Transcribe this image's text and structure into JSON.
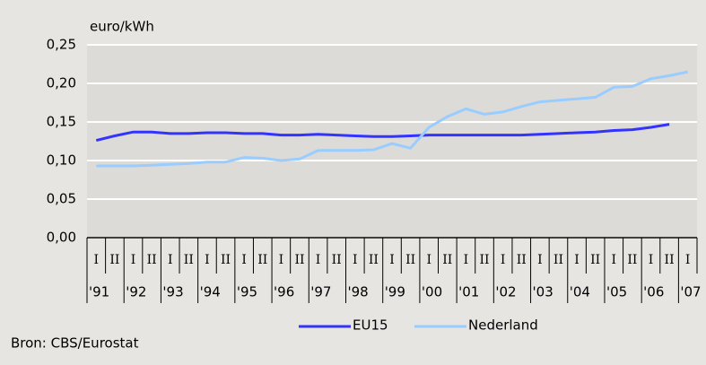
{
  "chart_data": {
    "type": "line",
    "y_unit": "euro/kWh",
    "source": "Bron: CBS/Eurostat",
    "categories": [
      "I",
      "II",
      "I",
      "II",
      "I",
      "II",
      "I",
      "II",
      "I",
      "II",
      "I",
      "II",
      "I",
      "II",
      "I",
      "II",
      "I",
      "II",
      "I",
      "II",
      "I",
      "II",
      "I",
      "II",
      "I",
      "II",
      "I",
      "II",
      "I",
      "II",
      "I",
      "II",
      "I"
    ],
    "year_labels": [
      "'91",
      "'92",
      "'93",
      "'94",
      "'95",
      "'96",
      "'97",
      "'98",
      "'99",
      "'00",
      "'01",
      "'02",
      "'03",
      "'04",
      "'05",
      "'06",
      "'07"
    ],
    "series": [
      {
        "name": "EU15",
        "color": "#3333ff",
        "values": [
          0.126,
          0.132,
          0.137,
          0.137,
          0.135,
          0.135,
          0.136,
          0.136,
          0.135,
          0.135,
          0.133,
          0.133,
          0.134,
          0.133,
          0.132,
          0.131,
          0.131,
          0.132,
          0.133,
          0.133,
          0.133,
          0.133,
          0.133,
          0.133,
          0.134,
          0.135,
          0.136,
          0.137,
          0.139,
          0.14,
          0.143,
          0.147,
          null
        ]
      },
      {
        "name": "Nederland",
        "color": "#99ccff",
        "values": [
          0.093,
          0.093,
          0.093,
          0.094,
          0.095,
          0.096,
          0.098,
          0.098,
          0.104,
          0.103,
          0.1,
          0.102,
          0.113,
          0.113,
          0.113,
          0.114,
          0.122,
          0.116,
          0.143,
          0.157,
          0.167,
          0.16,
          0.163,
          0.17,
          0.176,
          0.178,
          0.18,
          0.182,
          0.195,
          0.196,
          0.206,
          0.21,
          0.215
        ]
      }
    ],
    "ylim": [
      0,
      0.25
    ],
    "yticks": [
      {
        "value": 0,
        "label": "0,00"
      },
      {
        "value": 0.05,
        "label": "0,05"
      },
      {
        "value": 0.1,
        "label": "0,10"
      },
      {
        "value": 0.15,
        "label": "0,15"
      },
      {
        "value": 0.2,
        "label": "0,20"
      },
      {
        "value": 0.25,
        "label": "0,25"
      }
    ],
    "grid": true
  }
}
